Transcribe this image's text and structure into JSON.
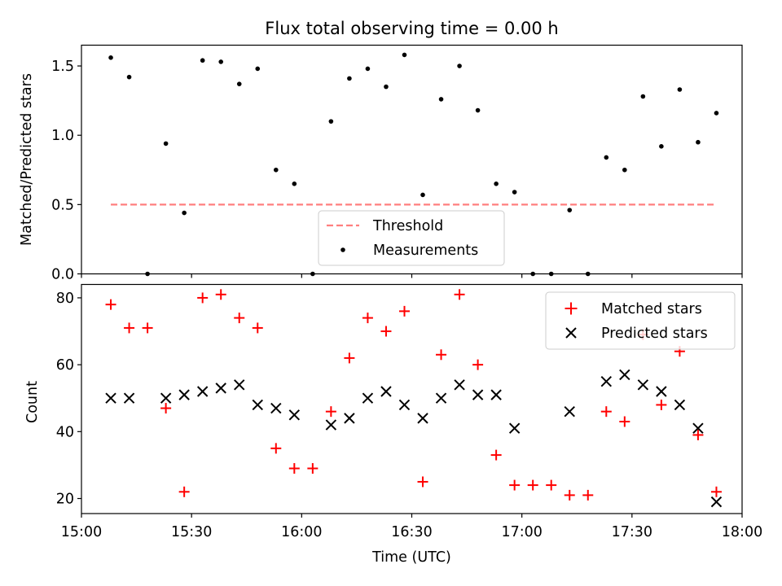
{
  "figure": {
    "title": "Flux total observing time = 0.00 h"
  },
  "chart_data": [
    {
      "type": "scatter",
      "panel": "top",
      "title": "Flux total observing time = 0.00 h",
      "xlabel": "",
      "ylabel": "Matched/Predicted stars",
      "xlim": [
        "15:00",
        "18:00"
      ],
      "ylim": [
        0.0,
        1.65
      ],
      "yticks": [
        "0.0",
        "0.5",
        "1.0",
        "1.5"
      ],
      "grid": false,
      "legend_location": "lower center",
      "threshold": {
        "name": "Threshold",
        "value": 0.5,
        "x_start": "15:08",
        "x_end": "17:53",
        "color": "#ff7f7f",
        "style": "dashed"
      },
      "series": [
        {
          "name": "Measurements",
          "marker": "dot",
          "color": "#000000",
          "x": [
            "15:08",
            "15:13",
            "15:18",
            "15:23",
            "15:28",
            "15:33",
            "15:38",
            "15:43",
            "15:48",
            "15:53",
            "15:58",
            "16:03",
            "16:08",
            "16:13",
            "16:18",
            "16:23",
            "16:28",
            "16:33",
            "16:38",
            "16:43",
            "16:48",
            "16:53",
            "16:58",
            "17:03",
            "17:08",
            "17:13",
            "17:18",
            "17:23",
            "17:28",
            "17:33",
            "17:38",
            "17:43",
            "17:48",
            "17:53"
          ],
          "y": [
            1.56,
            1.42,
            0.0,
            0.94,
            0.44,
            1.54,
            1.53,
            1.37,
            1.48,
            0.75,
            0.65,
            0.0,
            1.1,
            1.41,
            1.48,
            1.35,
            1.58,
            0.57,
            1.26,
            1.5,
            1.18,
            0.65,
            0.59,
            0.0,
            0.0,
            0.46,
            0.0,
            0.84,
            0.75,
            1.28,
            0.92,
            1.33,
            0.95,
            1.16
          ]
        }
      ]
    },
    {
      "type": "scatter",
      "panel": "bottom",
      "title": "",
      "xlabel": "Time (UTC)",
      "ylabel": "Count",
      "xlim": [
        "15:00",
        "18:00"
      ],
      "xticks": [
        "15:00",
        "15:30",
        "16:00",
        "16:30",
        "17:00",
        "17:30",
        "18:00"
      ],
      "ylim": [
        15.5,
        84
      ],
      "yticks": [
        "20",
        "40",
        "60",
        "80"
      ],
      "grid": false,
      "legend_location": "upper right",
      "series": [
        {
          "name": "Matched stars",
          "marker": "plus",
          "color": "#ff0000",
          "x": [
            "15:08",
            "15:13",
            "15:18",
            "15:23",
            "15:28",
            "15:33",
            "15:38",
            "15:43",
            "15:48",
            "15:53",
            "15:58",
            "16:03",
            "16:08",
            "16:13",
            "16:18",
            "16:23",
            "16:28",
            "16:33",
            "16:38",
            "16:43",
            "16:48",
            "16:53",
            "16:58",
            "17:03",
            "17:08",
            "17:13",
            "17:18",
            "17:23",
            "17:28",
            "17:33",
            "17:38",
            "17:43",
            "17:48",
            "17:53"
          ],
          "y": [
            78,
            71,
            71,
            47,
            22,
            80,
            81,
            74,
            71,
            35,
            29,
            29,
            46,
            62,
            74,
            70,
            76,
            25,
            63,
            81,
            60,
            33,
            24,
            24,
            24,
            21,
            21,
            46,
            43,
            69,
            48,
            64,
            39,
            22
          ]
        },
        {
          "name": "Predicted stars",
          "marker": "x",
          "color": "#000000",
          "x": [
            "15:08",
            "15:13",
            "15:23",
            "15:28",
            "15:33",
            "15:38",
            "15:43",
            "15:48",
            "15:53",
            "15:58",
            "16:08",
            "16:13",
            "16:18",
            "16:23",
            "16:28",
            "16:33",
            "16:38",
            "16:43",
            "16:48",
            "16:53",
            "16:58",
            "17:13",
            "17:23",
            "17:28",
            "17:33",
            "17:38",
            "17:43",
            "17:48",
            "17:53"
          ],
          "y": [
            50,
            50,
            50,
            51,
            52,
            53,
            54,
            48,
            47,
            45,
            42,
            44,
            50,
            52,
            48,
            44,
            50,
            54,
            51,
            51,
            41,
            46,
            55,
            57,
            54,
            52,
            48,
            41,
            19
          ]
        }
      ]
    }
  ]
}
